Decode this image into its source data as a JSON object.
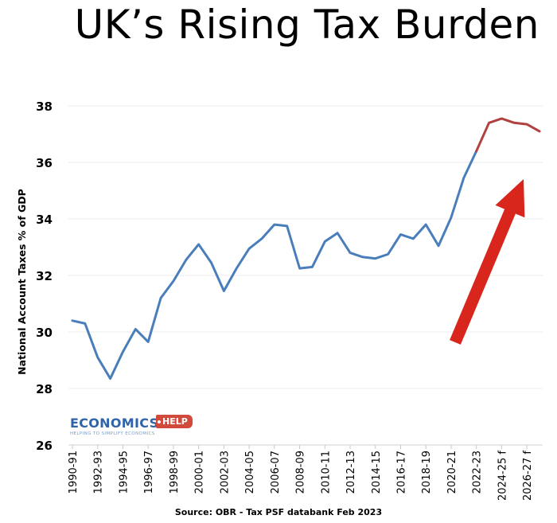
{
  "title": "UK’s Rising Tax Burden",
  "source": "Source: OBR - Tax PSF databank Feb 2023",
  "logo": {
    "word": "ECONOMICS",
    "badge": "HELP",
    "tagline": "HELPING TO SIMPLIFY ECONOMICS"
  },
  "colors": {
    "actual": "#4a7ebb",
    "forecast": "#b0413e",
    "arrow": "#d9261c",
    "grid": "#ebebeb"
  },
  "chart_data": {
    "type": "line",
    "title": "UK’s Rising Tax Burden",
    "xlabel": "",
    "ylabel": "National Account Taxes % of GDP",
    "ylim": [
      26,
      38
    ],
    "yticks": [
      26,
      28,
      30,
      32,
      34,
      36,
      38
    ],
    "grid": true,
    "xtick_labels": [
      "1990-91",
      "1992-93",
      "1994-95",
      "1996-97",
      "1998-99",
      "2000-01",
      "2002-03",
      "2004-05",
      "2006-07",
      "2008-09",
      "2010-11",
      "2012-13",
      "2014-15",
      "2016-17",
      "2018-19",
      "2020-21",
      "2022-23",
      "2024-25 f",
      "2026-27 f"
    ],
    "categories": [
      "1990-91",
      "1991-92",
      "1992-93",
      "1993-94",
      "1994-95",
      "1995-96",
      "1996-97",
      "1997-98",
      "1998-99",
      "1999-00",
      "2000-01",
      "2001-02",
      "2002-03",
      "2003-04",
      "2004-05",
      "2005-06",
      "2006-07",
      "2007-08",
      "2008-09",
      "2009-10",
      "2010-11",
      "2011-12",
      "2012-13",
      "2013-14",
      "2014-15",
      "2015-16",
      "2016-17",
      "2017-18",
      "2018-19",
      "2019-20",
      "2020-21",
      "2021-22",
      "2022-23",
      "2023-24",
      "2024-25 f",
      "2025-26 f",
      "2026-27 f",
      "2027-28 f"
    ],
    "values": [
      30.4,
      30.3,
      29.1,
      28.35,
      29.3,
      30.1,
      29.65,
      31.2,
      31.8,
      32.55,
      33.1,
      32.45,
      31.45,
      32.25,
      32.95,
      33.3,
      33.8,
      33.75,
      32.25,
      32.3,
      33.2,
      33.5,
      32.8,
      32.65,
      32.6,
      32.75,
      33.45,
      33.3,
      33.8,
      33.05,
      34.05,
      35.45,
      36.4,
      37.4,
      37.55,
      37.4,
      37.35,
      37.1
    ],
    "forecast_from_index": 32,
    "annotations": [
      "rising-trend-arrow"
    ]
  }
}
